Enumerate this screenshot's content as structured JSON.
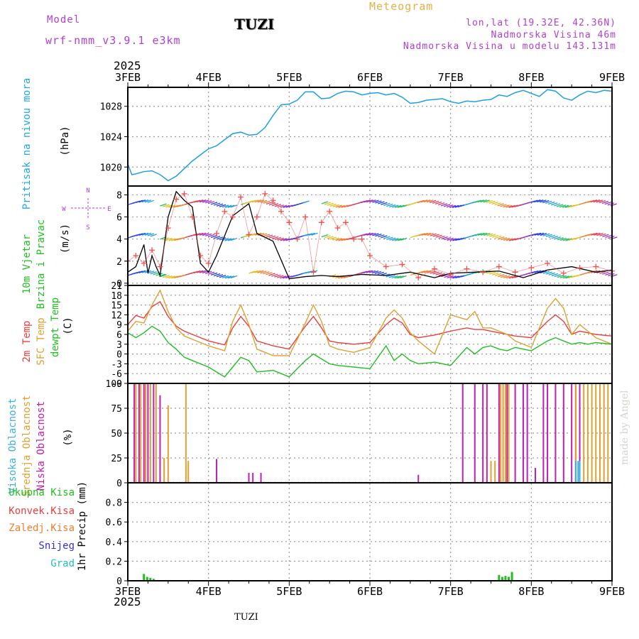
{
  "header": {
    "model_label": "Model",
    "model_name": "wrf-nmm_v3.9.1 e3km",
    "station": "TUZI",
    "meteogram_label": "Meteogram",
    "coords": "lon,lat (19.32E, 42.36N)",
    "altitude": "Nadmorska Visina 46m",
    "model_altitude": "Nadmorska Visina u modelu 143.131m"
  },
  "footer": {
    "station": "TUZI",
    "signature": "made by Angel"
  },
  "axis": {
    "year": "2025",
    "dates": [
      "3FEB",
      "4FEB",
      "5FEB",
      "6FEB",
      "7FEB",
      "8FEB",
      "9FEB"
    ]
  },
  "colors": {
    "pressure": "#1ea0e0",
    "temp2m": "#e84040",
    "sfc": "#e0a030",
    "dewpt": "#20c020",
    "cloud_high": "#40b0e0",
    "cloud_mid": "#e0a030",
    "cloud_low": "#c020b0",
    "wind_speed": "#000000",
    "gust_marker": "#f05050"
  },
  "chart_data": [
    {
      "type": "line",
      "title": "Pritisak na nivou mora",
      "ylabel": "(hPa)",
      "ylim": [
        1017.5,
        1030.5
      ],
      "yticks": [
        1020,
        1024,
        1028
      ],
      "x_days": [
        0.0,
        0.05,
        0.1,
        0.2,
        0.3,
        0.4,
        0.5,
        0.6,
        0.7,
        0.8,
        0.9,
        1.0,
        1.1,
        1.2,
        1.3,
        1.4,
        1.5,
        1.6,
        1.7,
        1.8,
        1.9,
        2.0,
        2.1,
        2.2,
        2.3,
        2.4,
        2.5,
        2.6,
        2.7,
        2.8,
        2.9,
        3.0,
        3.1,
        3.2,
        3.3,
        3.4,
        3.5,
        3.6,
        3.7,
        3.8,
        3.9,
        4.0,
        4.1,
        4.2,
        4.3,
        4.4,
        4.5,
        4.6,
        4.7,
        4.8,
        4.9,
        5.0,
        5.1,
        5.2,
        5.3,
        5.4,
        5.5,
        5.6,
        5.7,
        5.8,
        5.9,
        6.0
      ],
      "values": [
        1020.4,
        1019.0,
        1019.1,
        1019.4,
        1019.5,
        1019.0,
        1018.2,
        1018.8,
        1019.8,
        1020.8,
        1021.6,
        1022.4,
        1022.8,
        1023.6,
        1024.4,
        1024.6,
        1024.2,
        1024.3,
        1025.2,
        1026.8,
        1028.2,
        1028.3,
        1028.8,
        1029.9,
        1029.9,
        1029.0,
        1029.1,
        1029.7,
        1030.0,
        1029.9,
        1029.5,
        1029.7,
        1029.8,
        1029.5,
        1029.7,
        1029.2,
        1028.4,
        1028.5,
        1028.8,
        1028.9,
        1029.0,
        1028.6,
        1028.4,
        1028.7,
        1028.6,
        1028.8,
        1028.9,
        1029.5,
        1029.3,
        1029.8,
        1030.1,
        1029.7,
        1029.3,
        1030.2,
        1030.0,
        1029.1,
        1028.8,
        1029.5,
        1030.0,
        1029.8,
        1030.1,
        1030.0
      ]
    },
    {
      "type": "line",
      "title": "10m Vjetar Brzina i Pravac",
      "ylabel": "(m/s)",
      "compass": [
        "N",
        "W",
        "E",
        "S"
      ],
      "ylim": [
        -0.2,
        8.8
      ],
      "yticks": [
        0,
        2,
        4,
        6,
        8
      ],
      "series": [
        {
          "name": "wind speed",
          "x_days": [
            0.0,
            0.1,
            0.2,
            0.25,
            0.3,
            0.35,
            0.4,
            0.5,
            0.6,
            0.7,
            0.8,
            0.9,
            1.0,
            1.1,
            1.3,
            1.5,
            1.6,
            1.8,
            2.0,
            2.2,
            2.4,
            2.6,
            2.9,
            3.2,
            3.5,
            3.8,
            4.0,
            4.3,
            4.6,
            4.9,
            5.2,
            5.5,
            5.8,
            6.0
          ],
          "values": [
            1.0,
            1.5,
            3.5,
            0.9,
            2.5,
            1.5,
            0.7,
            6.0,
            8.3,
            7.5,
            6.9,
            1.8,
            1.0,
            2.5,
            6.1,
            7.2,
            4.5,
            3.8,
            0.4,
            0.6,
            0.7,
            0.6,
            0.8,
            0.7,
            1.0,
            0.5,
            0.9,
            1.0,
            1.1,
            0.5,
            1.2,
            1.5,
            1.0,
            1.2
          ]
        },
        {
          "name": "gust",
          "x_days": [
            0.0,
            0.1,
            0.2,
            0.3,
            0.4,
            0.5,
            0.6,
            0.7,
            0.8,
            0.9,
            1.0,
            1.1,
            1.2,
            1.3,
            1.4,
            1.5,
            1.6,
            1.7,
            1.8,
            1.9,
            2.0,
            2.1,
            2.2,
            2.3,
            2.4,
            2.5,
            2.6,
            2.7,
            2.8,
            2.9,
            3.0,
            3.2,
            3.4,
            3.6,
            3.8,
            4.0,
            4.2,
            4.4,
            4.6,
            4.8,
            5.0,
            5.2,
            5.4,
            5.6,
            5.8,
            6.0
          ],
          "values": [
            2.0,
            2.5,
            1.8,
            3.0,
            1.5,
            5.0,
            7.6,
            8.1,
            6.0,
            2.5,
            1.8,
            4.5,
            6.5,
            6.0,
            7.8,
            4.4,
            6.0,
            8.1,
            7.5,
            6.5,
            5.5,
            4.0,
            6.0,
            1.0,
            5.5,
            6.5,
            5.0,
            5.5,
            4.0,
            4.0,
            2.5,
            1.5,
            1.7,
            0.5,
            1.3,
            0.8,
            1.3,
            1.0,
            1.5,
            1.0,
            1.4,
            1.8,
            0.9,
            1.4,
            1.5,
            1.1
          ]
        }
      ]
    },
    {
      "type": "line",
      "title": "2m Temp / SFC Temp / dewpt Temp",
      "ylabel": "(C)",
      "ylim": [
        -9,
        21
      ],
      "yticks": [
        -9,
        -6,
        -3,
        0,
        3,
        6,
        9,
        12,
        15,
        18,
        21
      ],
      "x_days": [
        0.0,
        0.1,
        0.2,
        0.3,
        0.4,
        0.5,
        0.6,
        0.7,
        0.8,
        1.0,
        1.2,
        1.3,
        1.4,
        1.5,
        1.6,
        1.8,
        2.0,
        2.2,
        2.3,
        2.4,
        2.5,
        2.6,
        2.8,
        3.0,
        3.2,
        3.3,
        3.4,
        3.5,
        3.6,
        3.8,
        4.0,
        4.2,
        4.3,
        4.4,
        4.5,
        4.6,
        4.7,
        4.8,
        5.0,
        5.2,
        5.3,
        5.4,
        5.5,
        5.6,
        5.7,
        5.8,
        6.0
      ],
      "series": [
        {
          "name": "2m Temp",
          "values": [
            9.0,
            11.8,
            11.0,
            14.5,
            16.0,
            11.5,
            8.5,
            7.0,
            6.0,
            4.0,
            2.8,
            8.0,
            11.5,
            8.5,
            4.0,
            2.5,
            1.5,
            8.5,
            11.5,
            8.0,
            4.0,
            3.5,
            3.0,
            3.5,
            9.0,
            11.0,
            9.5,
            6.0,
            5.0,
            5.8,
            7.0,
            8.0,
            7.5,
            7.5,
            7.0,
            6.5,
            6.0,
            5.5,
            5.0,
            10.0,
            12.0,
            10.0,
            6.0,
            7.0,
            6.5,
            6.0,
            5.5
          ]
        },
        {
          "name": "SFC Temp",
          "values": [
            7.0,
            10.0,
            9.5,
            15.0,
            19.5,
            13.0,
            8.0,
            5.5,
            4.5,
            2.5,
            1.0,
            10.0,
            15.0,
            9.0,
            1.5,
            -0.5,
            -0.5,
            9.5,
            15.0,
            10.0,
            2.5,
            1.5,
            0.5,
            2.0,
            11.0,
            13.5,
            11.0,
            6.5,
            4.0,
            0.0,
            12.0,
            10.5,
            13.0,
            8.0,
            8.0,
            7.0,
            6.0,
            4.0,
            2.0,
            14.0,
            17.0,
            14.0,
            6.0,
            9.0,
            7.0,
            5.0,
            3.0
          ]
        },
        {
          "name": "dewpt Temp",
          "values": [
            6.5,
            5.0,
            6.5,
            8.5,
            7.0,
            3.5,
            1.5,
            -1.0,
            -2.0,
            -4.0,
            -7.0,
            -4.0,
            -1.0,
            -2.0,
            -5.5,
            -5.0,
            -7.0,
            -2.0,
            0.0,
            -1.5,
            -3.0,
            -3.5,
            -4.0,
            -4.5,
            2.5,
            -2.0,
            0.0,
            -2.0,
            -3.0,
            -2.5,
            -3.5,
            2.0,
            0.0,
            2.0,
            2.5,
            1.5,
            1.0,
            2.0,
            1.0,
            4.0,
            5.0,
            4.0,
            3.0,
            3.5,
            3.0,
            3.5,
            3.0
          ]
        }
      ]
    },
    {
      "type": "bar",
      "title": "Visoka / Srednja / Niska Oblacnost",
      "ylabel": "(%)",
      "ylim": [
        0,
        100
      ],
      "yticks": [
        0,
        25,
        50,
        75,
        100
      ],
      "series": [
        {
          "name": "Niska Oblacnost",
          "x_days": [
            0.08,
            0.14,
            0.2,
            0.25,
            0.32,
            0.4,
            1.1,
            1.5,
            1.55,
            1.65,
            3.6,
            4.15,
            4.3,
            4.4,
            4.45,
            4.6,
            4.7,
            4.8,
            4.9,
            4.95,
            5.05,
            5.15,
            5.2,
            5.3,
            5.4,
            5.5,
            5.55,
            5.6
          ],
          "values": [
            100,
            100,
            100,
            100,
            100,
            88,
            24,
            10,
            10,
            10,
            8,
            100,
            100,
            100,
            100,
            100,
            100,
            100,
            100,
            100,
            15,
            100,
            100,
            100,
            100,
            100,
            100,
            100
          ]
        },
        {
          "name": "Srednja Oblacnost",
          "x_days": [
            0.1,
            0.16,
            0.22,
            0.28,
            0.35,
            0.45,
            0.5,
            0.72,
            0.75,
            4.5,
            4.55,
            4.62,
            4.65,
            4.68,
            4.72,
            5.55,
            5.65,
            5.7,
            5.75,
            5.8,
            5.85,
            5.9,
            5.95,
            6.0
          ],
          "values": [
            100,
            100,
            100,
            100,
            100,
            25,
            78,
            100,
            22,
            22,
            22,
            100,
            100,
            100,
            100,
            100,
            100,
            100,
            100,
            100,
            100,
            100,
            100,
            100
          ]
        },
        {
          "name": "Visoka Oblacnost",
          "x_days": [
            5.55,
            5.58,
            5.6
          ],
          "values": [
            22,
            22,
            22
          ]
        }
      ]
    },
    {
      "type": "bar",
      "title": "1hr Precip",
      "ylabel": "1hr Precip (mm)",
      "ylim": [
        0,
        1.0
      ],
      "yticks": [
        0,
        0.2,
        0.4,
        0.6,
        0.8
      ],
      "legend": [
        "Ukupna Kisa",
        "Konvek.Kisa",
        "Zaledj.Kisa",
        "Snijeg",
        "Grad"
      ],
      "series": [
        {
          "name": "Ukupna Kisa",
          "x_days": [
            0.2,
            0.24,
            0.28,
            0.32,
            4.6,
            4.64,
            4.68,
            4.72,
            4.76
          ],
          "values": [
            0.07,
            0.04,
            0.03,
            0.02,
            0.06,
            0.04,
            0.05,
            0.04,
            0.09
          ]
        }
      ]
    }
  ]
}
